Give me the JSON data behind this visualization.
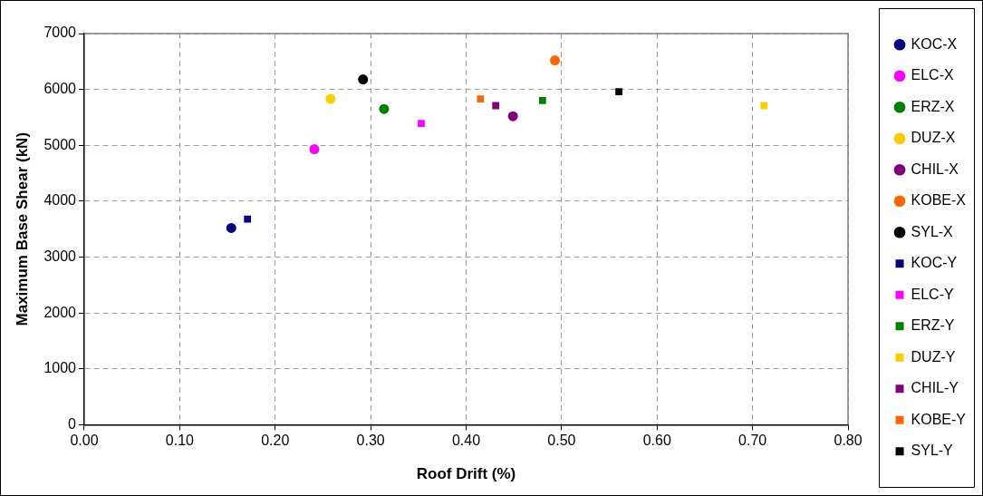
{
  "chart_data": {
    "type": "scatter",
    "xlabel": "Roof Drift (%)",
    "ylabel": "Maximum Base Shear (kN)",
    "xlim": [
      0,
      0.8
    ],
    "xticks": [
      {
        "value": 0,
        "label": "0.00"
      },
      {
        "value": 0.1,
        "label": "0.10"
      },
      {
        "value": 0.2,
        "label": "0.20"
      },
      {
        "value": 0.3,
        "label": "0.30"
      },
      {
        "value": 0.4,
        "label": "0.40"
      },
      {
        "value": 0.5,
        "label": "0.50"
      },
      {
        "value": 0.6,
        "label": "0.60"
      },
      {
        "value": 0.7,
        "label": "0.70"
      },
      {
        "value": 0.8,
        "label": "0.80"
      }
    ],
    "ylim": [
      0,
      7000
    ],
    "yticks": [
      0,
      1000,
      2000,
      3000,
      4000,
      5000,
      6000,
      7000
    ],
    "grid": true,
    "legend": "right",
    "series": [
      {
        "name": "KOC-X",
        "color": "#000080",
        "marker": "circle",
        "x": [
          0.154
        ],
        "values": [
          3520
        ]
      },
      {
        "name": "ELC-X",
        "color": "#ff00ff",
        "marker": "circle",
        "x": [
          0.241
        ],
        "values": [
          4930
        ]
      },
      {
        "name": "ERZ-X",
        "color": "#008000",
        "marker": "circle",
        "x": [
          0.314
        ],
        "values": [
          5650
        ]
      },
      {
        "name": "DUZ-X",
        "color": "#ffcc00",
        "marker": "circle",
        "x": [
          0.258
        ],
        "values": [
          5830
        ]
      },
      {
        "name": "CHIL-X",
        "color": "#800080",
        "marker": "circle",
        "x": [
          0.449
        ],
        "values": [
          5520
        ]
      },
      {
        "name": "KOBE-X",
        "color": "#ff6600",
        "marker": "circle",
        "x": [
          0.493
        ],
        "values": [
          6520
        ]
      },
      {
        "name": "SYL-X",
        "color": "#000000",
        "marker": "circle",
        "x": [
          0.292
        ],
        "values": [
          6180
        ]
      },
      {
        "name": "KOC-Y",
        "color": "#000080",
        "marker": "square",
        "x": [
          0.171
        ],
        "values": [
          3680
        ]
      },
      {
        "name": "ELC-Y",
        "color": "#ff00ff",
        "marker": "square",
        "x": [
          0.353
        ],
        "values": [
          5390
        ]
      },
      {
        "name": "ERZ-Y",
        "color": "#008000",
        "marker": "square",
        "x": [
          0.48
        ],
        "values": [
          5800
        ]
      },
      {
        "name": "DUZ-Y",
        "color": "#ffcc00",
        "marker": "square",
        "x": [
          0.712
        ],
        "values": [
          5710
        ]
      },
      {
        "name": "CHIL-Y",
        "color": "#800080",
        "marker": "square",
        "x": [
          0.431
        ],
        "values": [
          5710
        ]
      },
      {
        "name": "KOBE-Y",
        "color": "#ff6600",
        "marker": "square",
        "x": [
          0.415
        ],
        "values": [
          5830
        ]
      },
      {
        "name": "SYL-Y",
        "color": "#000000",
        "marker": "square",
        "x": [
          0.56
        ],
        "values": [
          5960
        ]
      }
    ]
  }
}
